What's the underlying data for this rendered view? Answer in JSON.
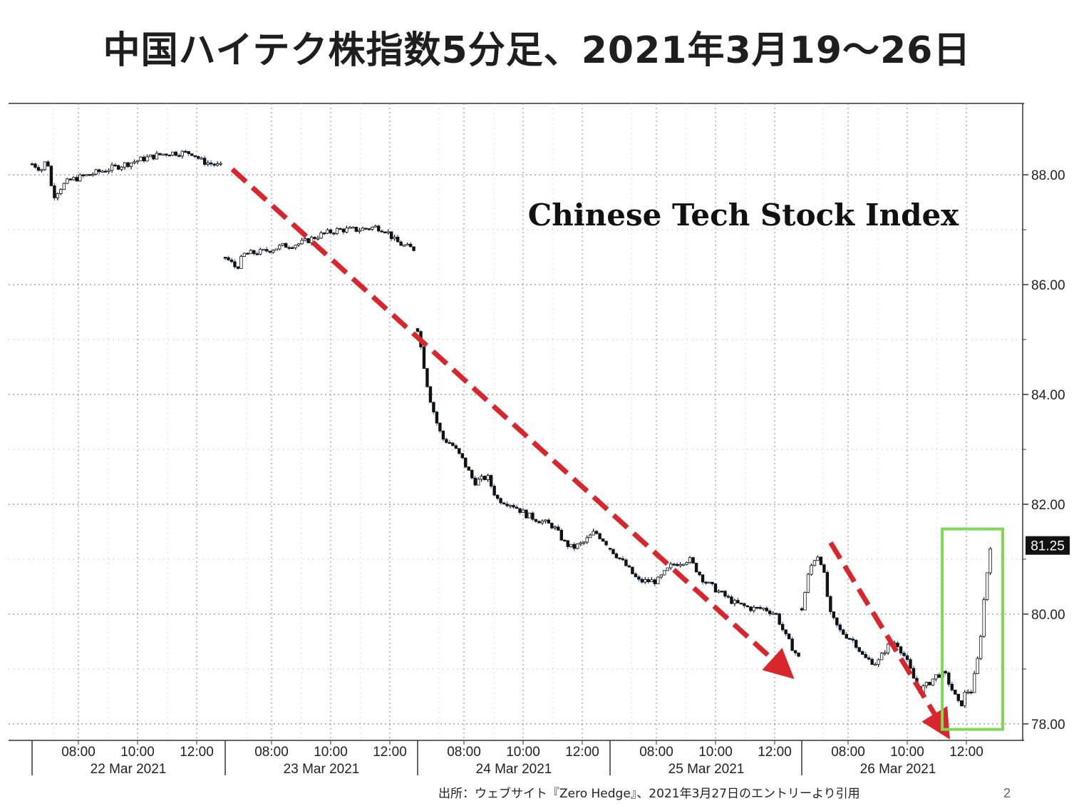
{
  "slide": {
    "title": "中国ハイテク株指数5分足、2021年3月19～26日",
    "source": "出所：ウェブサイト『Zero Hedge』、2021年3月27日のエントリーより引用",
    "page_number": "2"
  },
  "chart_data": {
    "type": "candlestick",
    "title": "Chinese Tech Stock Index",
    "ylim": [
      77.7,
      89.3
    ],
    "yticks": [
      "78.00",
      "80.00",
      "82.00",
      "84.00",
      "86.00",
      "88.00"
    ],
    "ytick_values": [
      78,
      80,
      82,
      84,
      86,
      88
    ],
    "last_price": "81.25",
    "last_price_value": 81.25,
    "days": [
      {
        "date": "22 Mar 2021",
        "times": [
          "08:00",
          "10:00",
          "12:00"
        ]
      },
      {
        "date": "23 Mar 2021",
        "times": [
          "08:00",
          "10:00",
          "12:00"
        ]
      },
      {
        "date": "24 Mar 2021",
        "times": [
          "08:00",
          "10:00",
          "12:00"
        ]
      },
      {
        "date": "25 Mar 2021",
        "times": [
          "08:00",
          "10:00",
          "12:00"
        ]
      },
      {
        "date": "26 Mar 2021",
        "times": [
          "08:00",
          "10:00",
          "12:00"
        ]
      }
    ],
    "series": [
      {
        "day": 0,
        "path": [
          [
            0.0,
            88.2
          ],
          [
            0.05,
            88.1
          ],
          [
            0.08,
            88.3
          ],
          [
            0.11,
            87.6
          ],
          [
            0.16,
            87.8
          ],
          [
            0.2,
            87.9
          ],
          [
            0.3,
            88.0
          ],
          [
            0.4,
            88.1
          ],
          [
            0.5,
            88.2
          ],
          [
            0.6,
            88.3
          ],
          [
            0.72,
            88.4
          ],
          [
            0.85,
            88.4
          ],
          [
            0.9,
            88.25
          ],
          [
            1.0,
            88.15
          ]
        ]
      },
      {
        "day": 1,
        "path": [
          [
            0.0,
            86.5
          ],
          [
            0.06,
            86.3
          ],
          [
            0.1,
            86.55
          ],
          [
            0.2,
            86.6
          ],
          [
            0.3,
            86.7
          ],
          [
            0.4,
            86.75
          ],
          [
            0.5,
            86.9
          ],
          [
            0.6,
            87.0
          ],
          [
            0.7,
            87.0
          ],
          [
            0.8,
            87.05
          ],
          [
            0.85,
            87.0
          ],
          [
            0.9,
            86.8
          ],
          [
            0.95,
            86.7
          ],
          [
            1.0,
            86.65
          ]
        ]
      },
      {
        "day": 2,
        "path": [
          [
            0.0,
            85.2
          ],
          [
            0.03,
            84.6
          ],
          [
            0.06,
            84.0
          ],
          [
            0.1,
            83.5
          ],
          [
            0.13,
            83.2
          ],
          [
            0.18,
            83.1
          ],
          [
            0.24,
            82.8
          ],
          [
            0.3,
            82.4
          ],
          [
            0.37,
            82.5
          ],
          [
            0.42,
            82.1
          ],
          [
            0.5,
            82.0
          ],
          [
            0.58,
            81.8
          ],
          [
            0.65,
            81.7
          ],
          [
            0.72,
            81.6
          ],
          [
            0.78,
            81.3
          ],
          [
            0.82,
            81.2
          ],
          [
            0.88,
            81.3
          ],
          [
            0.94,
            81.5
          ],
          [
            1.0,
            81.3
          ]
        ]
      },
      {
        "day": 3,
        "path": [
          [
            0.0,
            81.2
          ],
          [
            0.08,
            80.9
          ],
          [
            0.15,
            80.6
          ],
          [
            0.25,
            80.6
          ],
          [
            0.33,
            80.9
          ],
          [
            0.42,
            81.0
          ],
          [
            0.5,
            80.6
          ],
          [
            0.58,
            80.4
          ],
          [
            0.66,
            80.2
          ],
          [
            0.75,
            80.1
          ],
          [
            0.82,
            80.1
          ],
          [
            0.88,
            80.0
          ],
          [
            0.93,
            79.6
          ],
          [
            1.0,
            79.2
          ]
        ]
      },
      {
        "day": 4,
        "path": [
          [
            0.0,
            80.1
          ],
          [
            0.04,
            80.8
          ],
          [
            0.08,
            81.1
          ],
          [
            0.11,
            80.9
          ],
          [
            0.15,
            80.0
          ],
          [
            0.2,
            79.7
          ],
          [
            0.28,
            79.5
          ],
          [
            0.33,
            79.2
          ],
          [
            0.4,
            79.1
          ],
          [
            0.45,
            79.4
          ],
          [
            0.5,
            79.5
          ],
          [
            0.55,
            79.2
          ],
          [
            0.62,
            78.6
          ],
          [
            0.66,
            78.7
          ],
          [
            0.72,
            78.9
          ],
          [
            0.76,
            78.9
          ],
          [
            0.8,
            78.6
          ],
          [
            0.84,
            78.3
          ],
          [
            0.87,
            78.6
          ],
          [
            0.9,
            78.6
          ],
          [
            0.94,
            79.3
          ],
          [
            0.97,
            80.4
          ],
          [
            1.0,
            81.25
          ]
        ]
      }
    ],
    "annotations": [
      {
        "type": "arrow",
        "color": "#d9262c",
        "from": [
          0.0,
          88.1
        ],
        "to": [
          3.9,
          79.0
        ]
      },
      {
        "type": "arrow",
        "color": "#d9262c",
        "from": [
          4.15,
          81.3
        ],
        "to": [
          4.73,
          77.95
        ]
      },
      {
        "type": "box",
        "color": "#7ed957",
        "x_range": [
          4.73,
          5.0
        ],
        "y_range": [
          77.9,
          81.55
        ]
      }
    ],
    "grid": true,
    "colors": {
      "candle": "#111111",
      "wick_up": "#1f6fd1"
    }
  }
}
